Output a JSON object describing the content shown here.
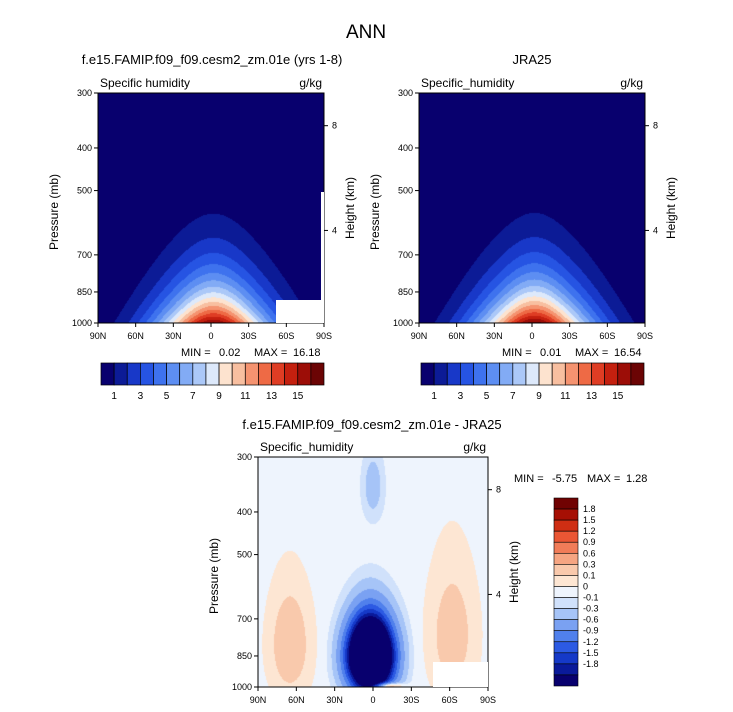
{
  "figure_title": "ANN",
  "colors": {
    "abs_scale": [
      "#08006e",
      "#0c1b96",
      "#1838c8",
      "#2654e3",
      "#3e72ee",
      "#5d8ef2",
      "#82abf5",
      "#abc8f8",
      "#dde9fb",
      "#fde3cf",
      "#f8bfa0",
      "#f59370",
      "#ee6a45",
      "#df3d24",
      "#c4200f",
      "#9c0d07",
      "#6b0404"
    ],
    "diff_scale": [
      "#08006e",
      "#0a1a9a",
      "#1539c8",
      "#2c5ae3",
      "#5080ec",
      "#7aa1f2",
      "#a6c4f7",
      "#d0e1fb",
      "#eef4fd",
      "#fde6d3",
      "#f9c9ac",
      "#f6a582",
      "#f17c58",
      "#ea5634",
      "#cf2e13",
      "#a60f04",
      "#700202"
    ]
  },
  "chart_data": [
    {
      "type": "heatmap",
      "title": "f.e15.FAMIP.f09_f09.cesm2_zm.01e (yrs 1-8)",
      "left_label": "Specific humidity",
      "right_label": "g/kg",
      "xlabel": "",
      "ylabel": "Pressure (mb)",
      "y2label": "Height (km)",
      "xticks": [
        "90N",
        "60N",
        "30N",
        "0",
        "30S",
        "60S",
        "90S"
      ],
      "yticks": [
        300,
        400,
        500,
        700,
        850,
        1000
      ],
      "y2ticks": [
        8,
        4
      ],
      "stats": {
        "min_label": "MIN =",
        "min": "0.02",
        "max_label": "MAX =",
        "max": "16.18"
      },
      "levels_min": 0,
      "levels_max": 16,
      "levels_step": 1,
      "colorbar_labels": [
        "1",
        "3",
        "5",
        "7",
        "9",
        "11",
        "13",
        "15"
      ],
      "peak_value": 16.18,
      "peak_lat": -2,
      "peak_surface_width": 26
    },
    {
      "type": "heatmap",
      "title": "JRA25",
      "left_label": "Specific_humidity",
      "right_label": "g/kg",
      "xlabel": "",
      "ylabel": "Pressure (mb)",
      "y2label": "Height (km)",
      "xticks": [
        "90N",
        "60N",
        "30N",
        "0",
        "30S",
        "60S",
        "90S"
      ],
      "yticks": [
        300,
        400,
        500,
        700,
        850,
        1000
      ],
      "y2ticks": [
        8,
        4
      ],
      "stats": {
        "min_label": "MIN =",
        "min": "0.01",
        "max_label": "MAX =",
        "max": "16.54"
      },
      "levels_min": 0,
      "levels_max": 16,
      "levels_step": 1,
      "colorbar_labels": [
        "1",
        "3",
        "5",
        "7",
        "9",
        "11",
        "13",
        "15"
      ],
      "peak_value": 16.54,
      "peak_lat": -2,
      "peak_surface_width": 24
    },
    {
      "type": "heatmap",
      "title": "f.e15.FAMIP.f09_f09.cesm2_zm.01e - JRA25",
      "left_label": "Specific_humidity",
      "right_label": "g/kg",
      "xlabel": "",
      "ylabel": "Pressure (mb)",
      "y2label": "Height (km)",
      "xticks": [
        "90N",
        "60N",
        "30N",
        "0",
        "30S",
        "60S",
        "90S"
      ],
      "yticks": [
        300,
        400,
        500,
        700,
        850,
        1000
      ],
      "y2ticks": [
        8,
        4
      ],
      "stats": {
        "min_label": "MIN =",
        "min": "-5.75",
        "max_label": "MAX =",
        "max": "1.28"
      },
      "colorbar_labels": [
        "1.8",
        "1.5",
        "1.2",
        "0.9",
        "0.6",
        "0.3",
        "0.1",
        "0",
        "-0.1",
        "-0.3",
        "-0.6",
        "-0.9",
        "-1.2",
        "-1.5",
        "-1.8"
      ],
      "levels": [
        -1.8,
        -1.5,
        -1.2,
        -0.9,
        -0.6,
        -0.3,
        -0.1,
        0,
        0.1,
        0.3,
        0.6,
        0.9,
        1.2,
        1.5,
        1.8
      ],
      "min_value": -5.75,
      "max_value": 1.28
    }
  ]
}
